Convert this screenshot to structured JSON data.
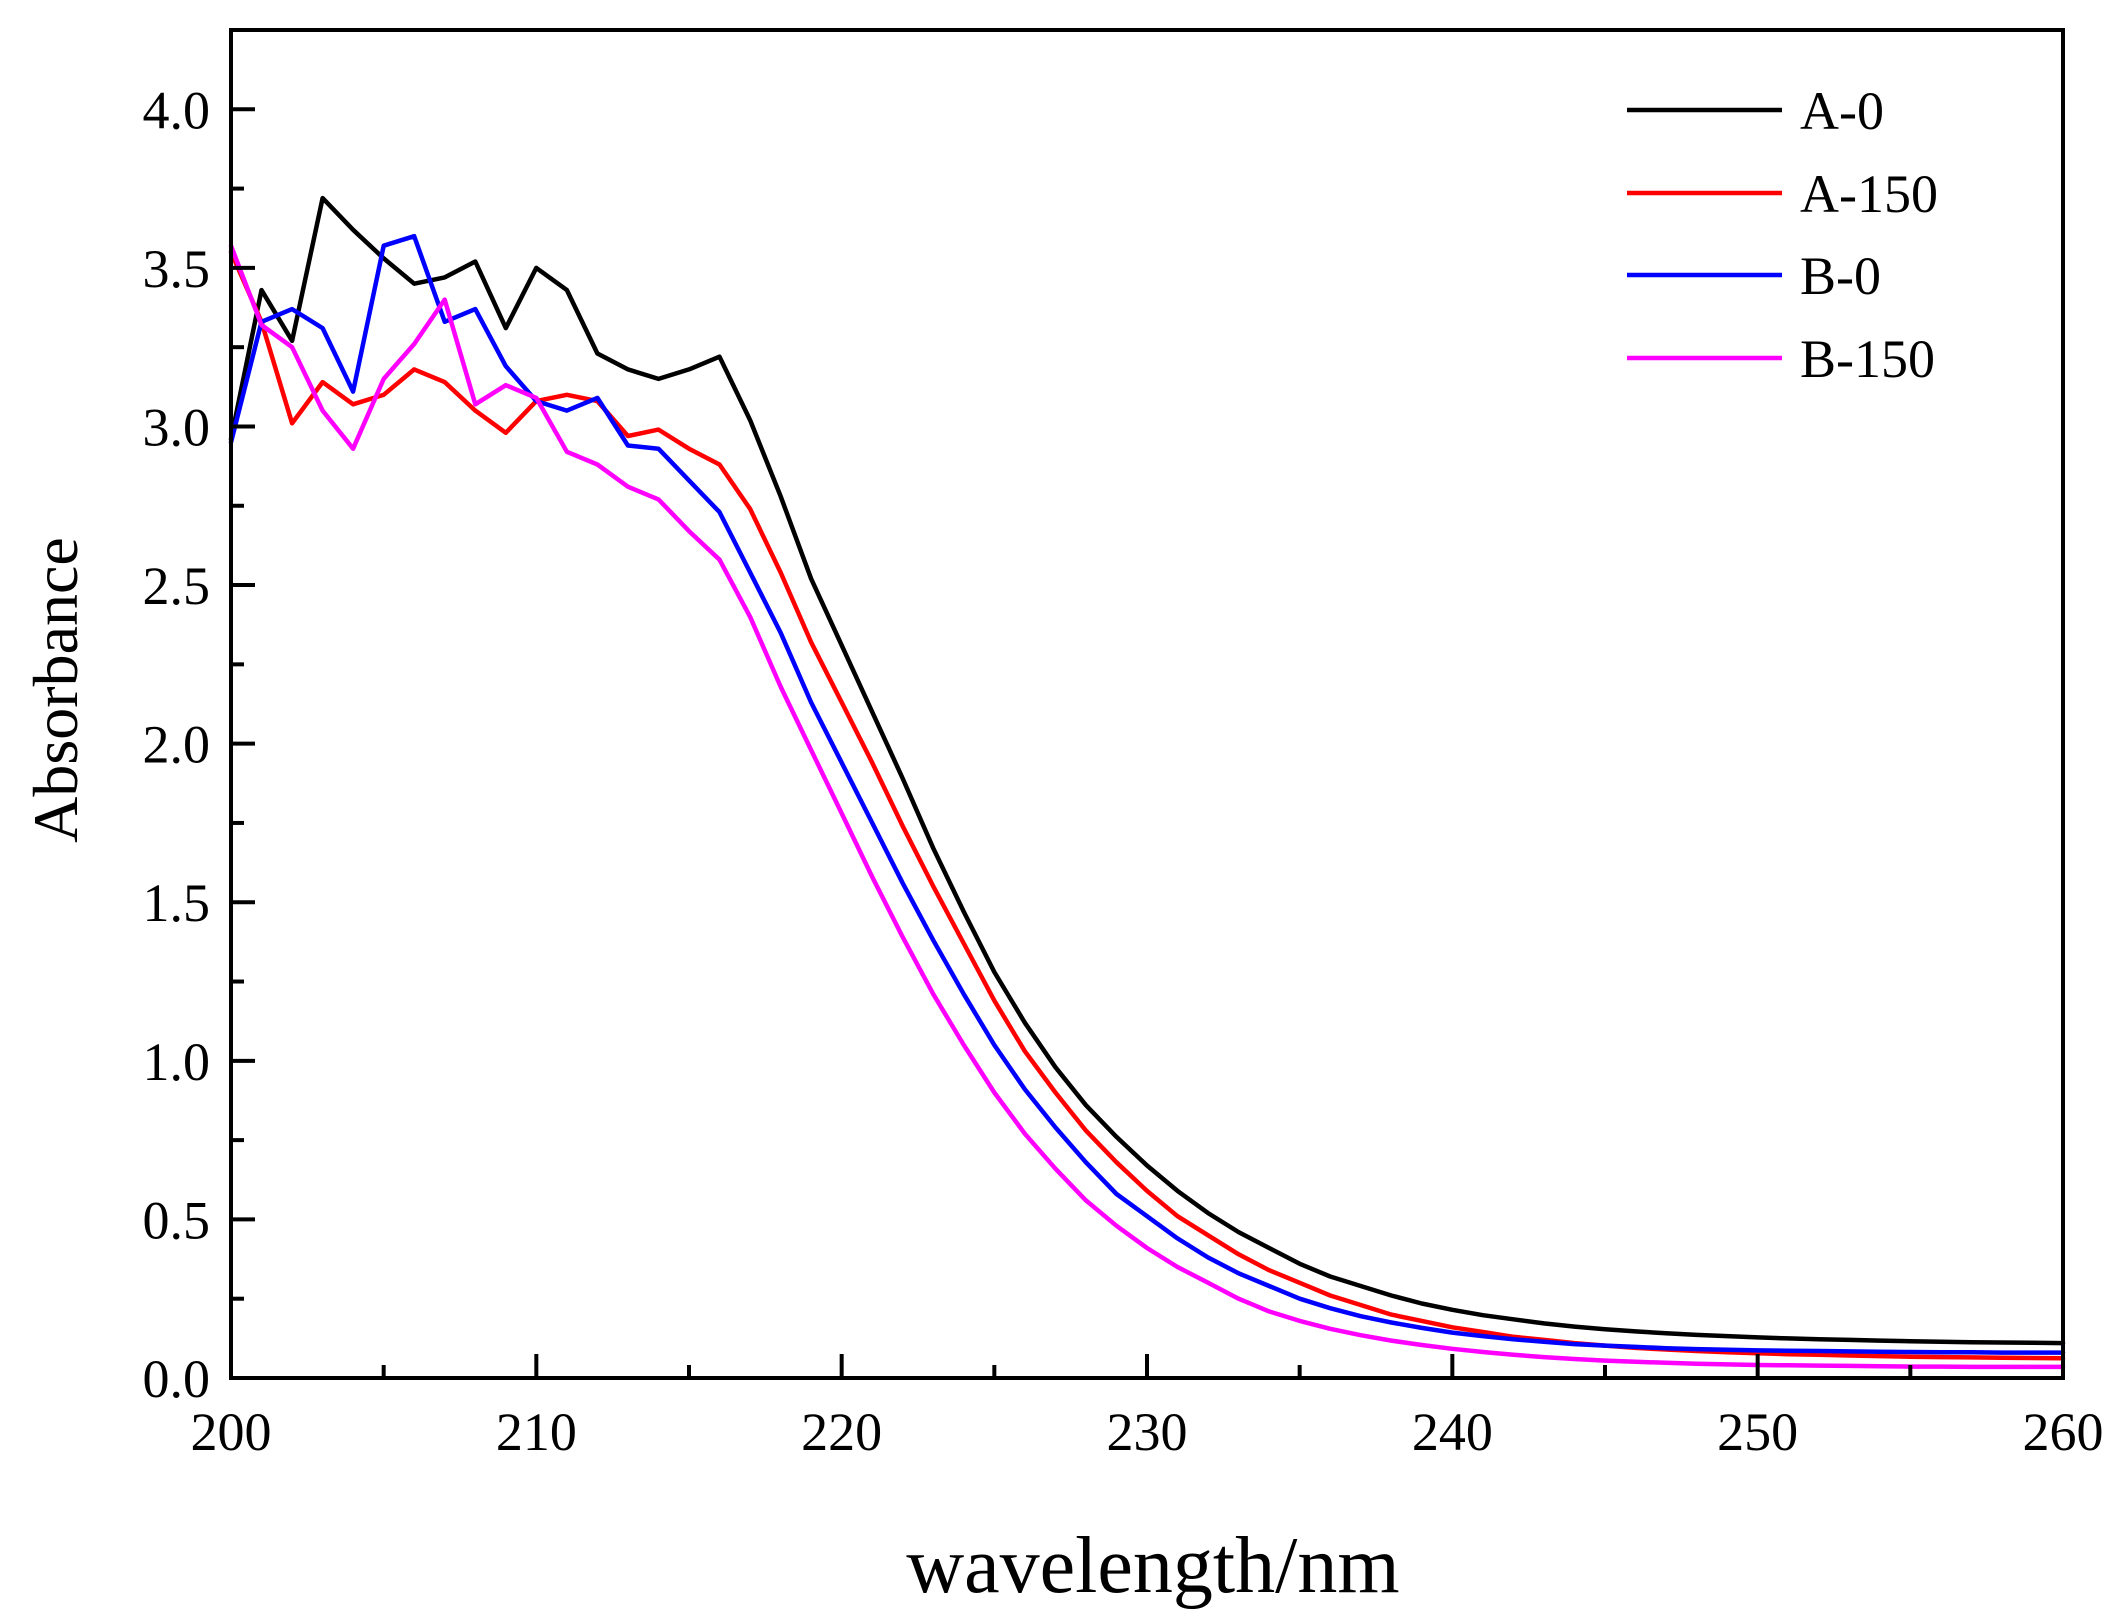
{
  "chart_data": {
    "type": "line",
    "title": "",
    "xlabel": "wavelength/nm",
    "ylabel": "Absorbance",
    "xlim": [
      200,
      260
    ],
    "ylim": [
      0,
      4.25
    ],
    "xticks": [
      200,
      210,
      220,
      230,
      240,
      250,
      260
    ],
    "xtick_labels": [
      "200",
      "210",
      "220",
      "230",
      "240",
      "250",
      "260"
    ],
    "xminor": [
      205,
      215,
      225,
      235,
      245,
      255
    ],
    "yticks": [
      0,
      0.5,
      1.0,
      1.5,
      2.0,
      2.5,
      3.0,
      3.5,
      4.0
    ],
    "ytick_labels": [
      "0.0",
      "0.5",
      "1.0",
      "1.5",
      "2.0",
      "2.5",
      "3.0",
      "3.5",
      "4.0"
    ],
    "yminor": [
      0.25,
      0.75,
      1.25,
      1.75,
      2.25,
      2.75,
      3.25,
      3.75
    ],
    "grid": false,
    "legend_position": "top-right",
    "x": [
      200,
      201,
      202,
      203,
      204,
      205,
      206,
      207,
      208,
      209,
      210,
      211,
      212,
      213,
      214,
      215,
      216,
      217,
      218,
      219,
      220,
      221,
      222,
      223,
      224,
      225,
      226,
      227,
      228,
      229,
      230,
      231,
      232,
      233,
      234,
      235,
      236,
      237,
      238,
      239,
      240,
      241,
      242,
      243,
      244,
      245,
      246,
      247,
      248,
      249,
      250,
      251,
      252,
      253,
      254,
      255,
      256,
      257,
      258,
      259,
      260
    ],
    "series": [
      {
        "name": "A-0",
        "color": "#000000",
        "values": [
          2.96,
          3.43,
          3.27,
          3.72,
          3.62,
          3.53,
          3.45,
          3.47,
          3.52,
          3.31,
          3.5,
          3.43,
          3.23,
          3.18,
          3.15,
          3.18,
          3.22,
          3.02,
          2.78,
          2.52,
          2.31,
          2.1,
          1.89,
          1.67,
          1.47,
          1.28,
          1.12,
          0.98,
          0.86,
          0.76,
          0.67,
          0.59,
          0.52,
          0.46,
          0.41,
          0.36,
          0.32,
          0.29,
          0.26,
          0.235,
          0.215,
          0.198,
          0.185,
          0.172,
          0.162,
          0.154,
          0.147,
          0.141,
          0.136,
          0.132,
          0.128,
          0.125,
          0.122,
          0.12,
          0.118,
          0.116,
          0.114,
          0.113,
          0.112,
          0.111,
          0.11
        ]
      },
      {
        "name": "A-150",
        "color": "#ff0000",
        "values": [
          3.55,
          3.33,
          3.01,
          3.14,
          3.07,
          3.1,
          3.18,
          3.14,
          3.05,
          2.98,
          3.08,
          3.1,
          3.08,
          2.97,
          2.99,
          2.93,
          2.88,
          2.74,
          2.54,
          2.32,
          2.13,
          1.94,
          1.74,
          1.55,
          1.37,
          1.19,
          1.03,
          0.9,
          0.78,
          0.68,
          0.59,
          0.51,
          0.45,
          0.39,
          0.34,
          0.3,
          0.26,
          0.23,
          0.2,
          0.18,
          0.16,
          0.145,
          0.13,
          0.12,
          0.11,
          0.102,
          0.095,
          0.09,
          0.085,
          0.081,
          0.078,
          0.075,
          0.073,
          0.071,
          0.069,
          0.067,
          0.066,
          0.065,
          0.064,
          0.063,
          0.062
        ]
      },
      {
        "name": "B-0",
        "color": "#0000ff",
        "values": [
          2.95,
          3.33,
          3.37,
          3.31,
          3.11,
          3.57,
          3.6,
          3.33,
          3.37,
          3.19,
          3.08,
          3.05,
          3.09,
          2.94,
          2.93,
          2.83,
          2.73,
          2.54,
          2.35,
          2.13,
          1.94,
          1.75,
          1.56,
          1.38,
          1.21,
          1.05,
          0.91,
          0.79,
          0.68,
          0.58,
          0.51,
          0.44,
          0.38,
          0.33,
          0.29,
          0.25,
          0.22,
          0.195,
          0.175,
          0.158,
          0.143,
          0.132,
          0.122,
          0.114,
          0.107,
          0.102,
          0.098,
          0.094,
          0.091,
          0.089,
          0.087,
          0.086,
          0.085,
          0.084,
          0.083,
          0.082,
          0.081,
          0.081,
          0.08,
          0.08,
          0.08
        ]
      },
      {
        "name": "B-150",
        "color": "#ff00ff",
        "values": [
          3.57,
          3.32,
          3.25,
          3.05,
          2.93,
          3.15,
          3.26,
          3.4,
          3.07,
          3.13,
          3.09,
          2.92,
          2.88,
          2.81,
          2.77,
          2.67,
          2.58,
          2.4,
          2.18,
          1.98,
          1.78,
          1.58,
          1.39,
          1.21,
          1.05,
          0.9,
          0.77,
          0.66,
          0.56,
          0.48,
          0.41,
          0.35,
          0.3,
          0.25,
          0.21,
          0.18,
          0.155,
          0.135,
          0.118,
          0.104,
          0.092,
          0.082,
          0.073,
          0.066,
          0.06,
          0.055,
          0.051,
          0.048,
          0.045,
          0.043,
          0.041,
          0.04,
          0.039,
          0.038,
          0.037,
          0.036,
          0.036,
          0.035,
          0.035,
          0.035,
          0.035
        ]
      }
    ]
  }
}
